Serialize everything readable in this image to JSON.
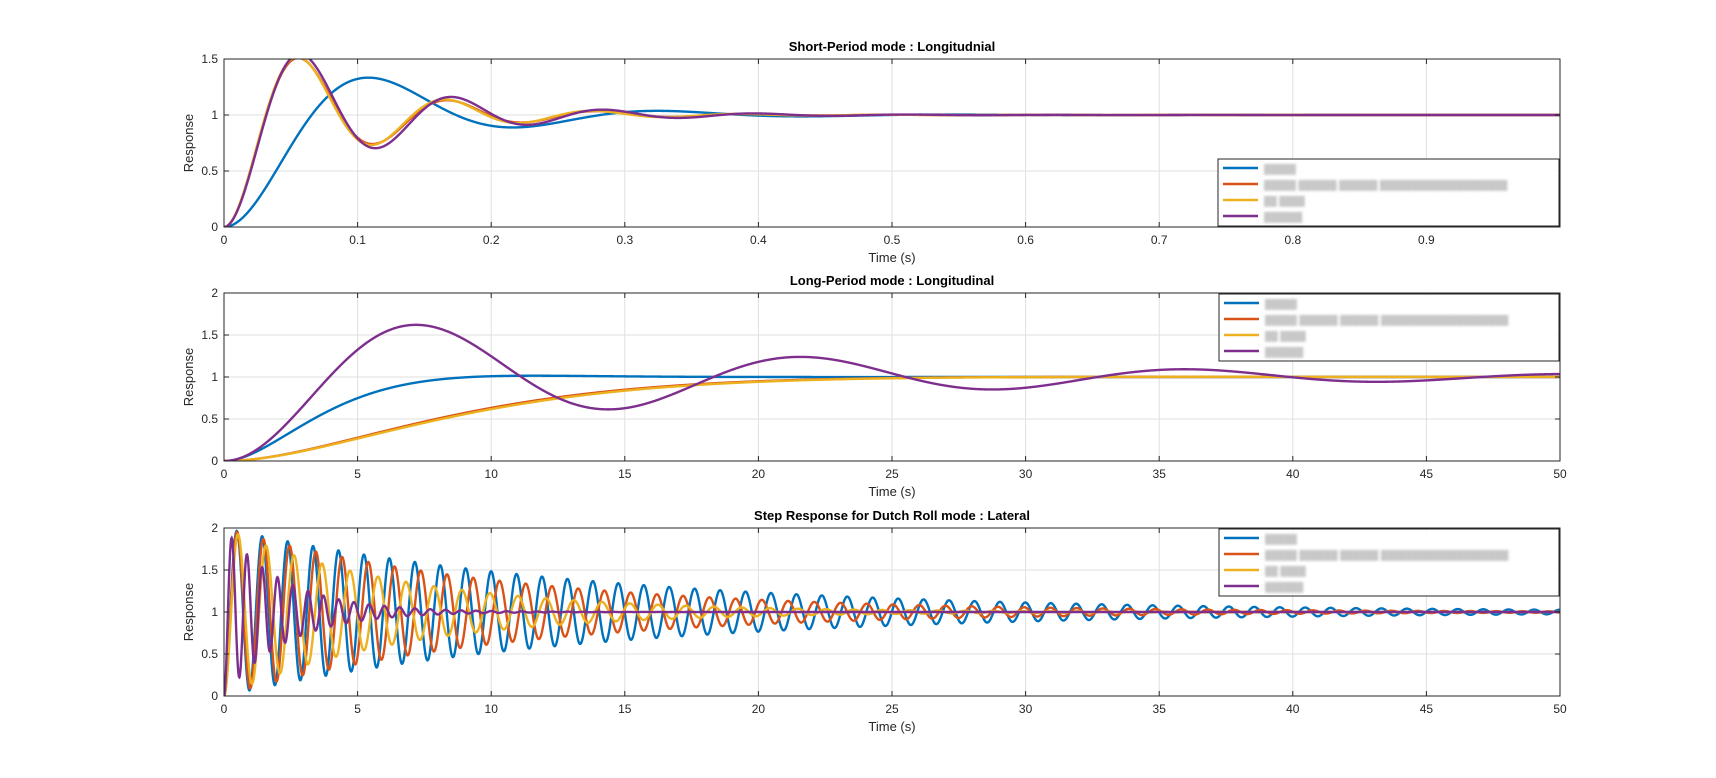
{
  "colors": {
    "series1": "#0072BD",
    "series2": "#D95319",
    "series3": "#EDB120",
    "series4": "#7E2F8E",
    "grid": "#dfdfdf",
    "axis": "#262626"
  },
  "chart_data": [
    {
      "type": "line",
      "title": "Short-Period mode : Longitudnial",
      "xlabel": "Time (s)",
      "ylabel": "Response",
      "xlim": [
        0,
        1
      ],
      "ylim": [
        0,
        1.5
      ],
      "xticks": [
        0,
        0.1,
        0.2,
        0.3,
        0.4,
        0.5,
        0.6,
        0.7,
        0.8,
        0.9
      ],
      "xtick_labels": [
        "0",
        "0.1",
        "0.2",
        "0.3",
        "0.4",
        "0.5",
        "0.6",
        "0.7",
        "0.8",
        "0.9"
      ],
      "yticks": [
        0,
        0.5,
        1,
        1.5
      ],
      "ytick_labels": [
        "0",
        "0.5",
        "1",
        "1.5"
      ],
      "grid": true,
      "legend_position": "bottom-right",
      "legend_entries": [
        "█████",
        "█████ ██████ ██████ ████████████████████",
        "██ ████",
        "██████"
      ],
      "series": [
        {
          "color": "#0072BD",
          "step": {
            "wn": 30.8,
            "zeta": 0.33
          }
        },
        {
          "color": "#D95319",
          "step": {
            "wn": 57.8,
            "zeta": 0.21
          }
        },
        {
          "color": "#EDB120",
          "step": {
            "wn": 58.3,
            "zeta": 0.205
          }
        },
        {
          "color": "#7E2F8E",
          "step": {
            "wn": 56.5,
            "zeta": 0.19
          }
        }
      ]
    },
    {
      "type": "line",
      "title": "Long-Period mode : Longitudinal",
      "xlabel": "Time (s)",
      "ylabel": "Response",
      "xlim": [
        0,
        50
      ],
      "ylim": [
        0,
        2
      ],
      "xticks": [
        0,
        5,
        10,
        15,
        20,
        25,
        30,
        35,
        40,
        45,
        50
      ],
      "xtick_labels": [
        "0",
        "5",
        "10",
        "15",
        "20",
        "25",
        "30",
        "35",
        "40",
        "45",
        "50"
      ],
      "yticks": [
        0,
        0.5,
        1,
        1.5,
        2
      ],
      "ytick_labels": [
        "0",
        "0.5",
        "1",
        "1.5",
        "2"
      ],
      "grid": true,
      "legend_position": "top-right",
      "legend_entries": [
        "█████",
        "█████ ██████ ██████ ████████████████████",
        "██ ████",
        "██████"
      ],
      "series": [
        {
          "color": "#0072BD",
          "step": {
            "wn": 0.45,
            "zeta": 0.8
          }
        },
        {
          "color": "#D95319",
          "step": {
            "wn": 0.2,
            "zeta": 0.9
          }
        },
        {
          "color": "#EDB120",
          "step": {
            "wn": 0.195,
            "zeta": 0.9
          }
        },
        {
          "color": "#7E2F8E",
          "step": {
            "wn": 0.442,
            "zeta": 0.15
          }
        }
      ]
    },
    {
      "type": "line",
      "title": "Step Response for Dutch Roll mode : Lateral",
      "xlabel": "Time (s)",
      "ylabel": "Response",
      "xlim": [
        0,
        50
      ],
      "ylim": [
        0,
        2
      ],
      "xticks": [
        0,
        5,
        10,
        15,
        20,
        25,
        30,
        35,
        40,
        45,
        50
      ],
      "xtick_labels": [
        "0",
        "5",
        "10",
        "15",
        "20",
        "25",
        "30",
        "35",
        "40",
        "45",
        "50"
      ],
      "yticks": [
        0,
        0.5,
        1,
        1.5,
        2
      ],
      "ytick_labels": [
        "0",
        "0.5",
        "1",
        "1.5",
        "2"
      ],
      "grid": true,
      "legend_position": "top-right",
      "legend_entries": [
        "█████",
        "█████ ██████ ██████ ████████████████████",
        "██ ████",
        "██████"
      ],
      "series": [
        {
          "color": "#0072BD",
          "step": {
            "wn": 6.6,
            "zeta": 0.011
          }
        },
        {
          "color": "#D95319",
          "step": {
            "wn": 6.4,
            "zeta": 0.015
          }
        },
        {
          "color": "#EDB120",
          "step": {
            "wn": 6.0,
            "zeta": 0.025
          }
        },
        {
          "color": "#7E2F8E",
          "step": {
            "wn": 11.0,
            "zeta": 0.04
          }
        }
      ]
    }
  ]
}
